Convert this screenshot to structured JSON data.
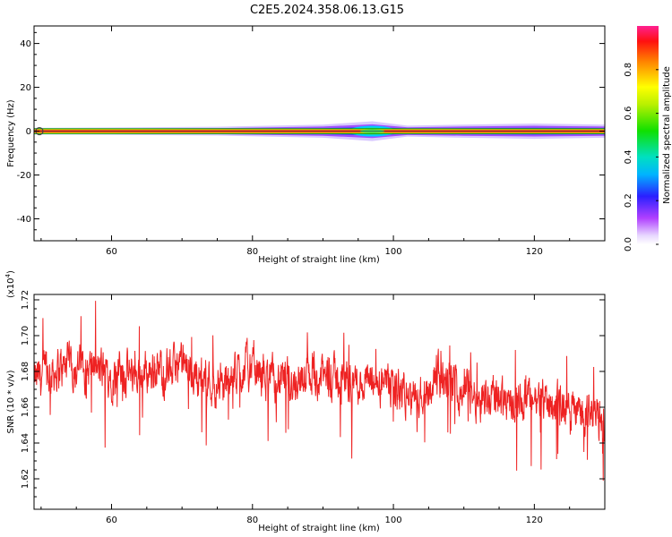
{
  "title": "C2E5.2024.358.06.13.G15",
  "chart_data": [
    {
      "type": "heatmap",
      "xlabel": "Height of straight line (km)",
      "ylabel": "Frequency (Hz)",
      "xlim": [
        49,
        130
      ],
      "ylim": [
        -50,
        48
      ],
      "xticks": [
        60,
        80,
        100,
        120
      ],
      "yticks": [
        -40,
        -20,
        0,
        20,
        40
      ],
      "colorbar": {
        "label": "Normalized spectral amplitude",
        "range": [
          0,
          1
        ],
        "ticks": [
          "0.0",
          "0.2",
          "0.4",
          "0.6",
          "0.8"
        ]
      },
      "band": {
        "center_hz": 0,
        "core_color": "#ff2020",
        "edge_color": "#00a000",
        "spread_profile": [
          {
            "x": 49,
            "width_hz": 1.5
          },
          {
            "x": 75,
            "width_hz": 2.0
          },
          {
            "x": 90,
            "width_hz": 3.0
          },
          {
            "x": 97,
            "width_hz": 4.5
          },
          {
            "x": 102,
            "width_hz": 2.5
          },
          {
            "x": 110,
            "width_hz": 3.0
          },
          {
            "x": 120,
            "width_hz": 3.5
          },
          {
            "x": 130,
            "width_hz": 3.0
          }
        ],
        "hotspot_x": 97
      }
    },
    {
      "type": "line",
      "xlabel": "Height of straight line (km)",
      "ylabel": "SNR (10 * v/v)",
      "y_scale_note": "(x10",
      "y_scale_exp": "4",
      "y_scale_close": ")",
      "xlim": [
        49,
        130
      ],
      "ylim": [
        1.603,
        1.723
      ],
      "xticks": [
        60,
        80,
        100,
        120
      ],
      "yticks": [
        "1.62",
        "1.64",
        "1.66",
        "1.68",
        "1.70",
        "1.72"
      ],
      "line_color": "#ee2222",
      "series": [
        {
          "x": [
            49,
            52,
            55,
            58,
            61,
            64,
            67,
            70,
            73,
            76,
            79,
            82,
            85,
            88,
            91,
            94,
            97,
            100,
            103,
            106,
            109,
            112,
            115,
            118,
            121,
            124,
            127,
            130
          ],
          "y": [
            1.674,
            1.681,
            1.684,
            1.68,
            1.678,
            1.679,
            1.681,
            1.682,
            1.677,
            1.671,
            1.683,
            1.676,
            1.674,
            1.678,
            1.676,
            1.675,
            1.673,
            1.671,
            1.664,
            1.676,
            1.672,
            1.667,
            1.666,
            1.664,
            1.664,
            1.661,
            1.657,
            1.652
          ],
          "noise_amplitude": 0.012
        }
      ]
    }
  ]
}
